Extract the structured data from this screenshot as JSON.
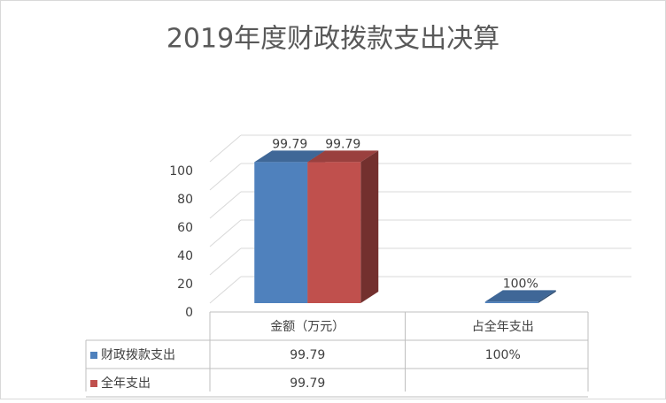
{
  "chart_data": {
    "type": "bar3d",
    "title": "2019年度财政拨款支出决算",
    "categories": [
      "金额（万元）",
      "占全年支出"
    ],
    "series": [
      {
        "name": "财政拨款支出",
        "color": "#4f81bd",
        "values": [
          99.79,
          1
        ],
        "value_labels": [
          "99.79",
          "100%"
        ]
      },
      {
        "name": "全年支出",
        "color": "#c0504d",
        "values": [
          99.79,
          null
        ],
        "value_labels": [
          "99.79",
          null
        ]
      }
    ],
    "ylim": [
      0,
      100
    ],
    "yticks": [
      0,
      20,
      40,
      60,
      80,
      100
    ],
    "grid": true,
    "data_table": true
  }
}
